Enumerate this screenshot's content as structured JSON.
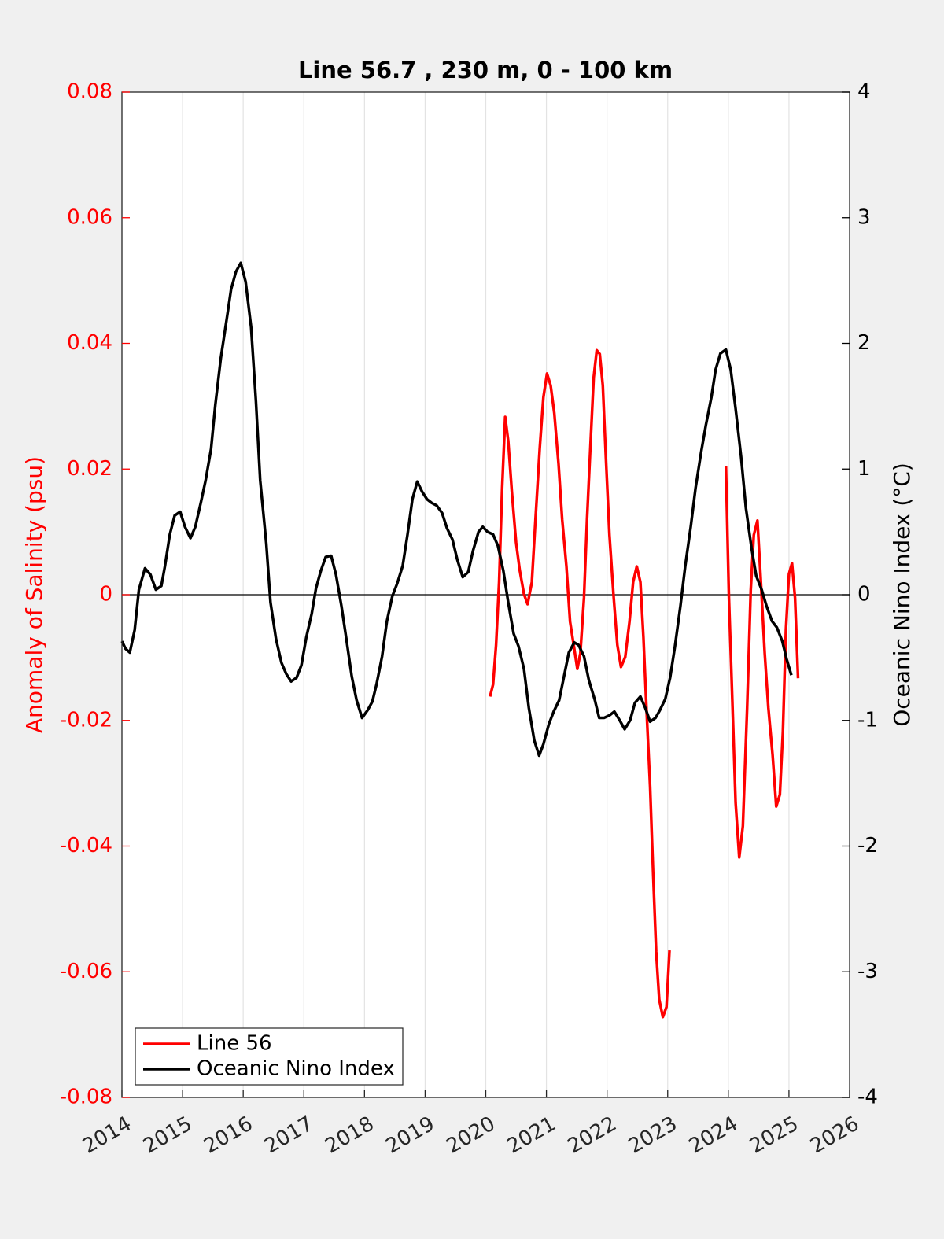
{
  "chart_data": {
    "type": "line",
    "title": "Line 56.7 , 230 m, 0 - 100 km",
    "ylabel": "Anomaly of Salinity (psu)",
    "y2label": "Oceanic Nino Index (°C)",
    "xlim": [
      2014,
      2026
    ],
    "xticks": [
      2014,
      2015,
      2016,
      2017,
      2018,
      2019,
      2020,
      2021,
      2022,
      2023,
      2024,
      2025,
      2026
    ],
    "ylim": [
      -0.08,
      0.08
    ],
    "yticks": [
      -0.08,
      -0.06,
      -0.04,
      -0.02,
      0,
      0.02,
      0.04,
      0.06,
      0.08
    ],
    "y2lim": [
      -4,
      4
    ],
    "y2ticks": [
      -4,
      -3,
      -2,
      -1,
      0,
      1,
      2,
      3,
      4
    ],
    "ycolor": "#ff0000",
    "y2color": "#000000",
    "xgrid": true,
    "hline": 0,
    "legend": "lower left",
    "series": [
      {
        "name": "Line 56",
        "color": "#ff0000",
        "x": [
          2020.07,
          2020.12,
          2020.17,
          2020.22,
          2020.27,
          2020.32,
          2020.37,
          2020.43,
          2020.5,
          2020.56,
          2020.63,
          2020.69,
          2020.76,
          2020.82,
          2020.89,
          2020.95,
          2021.01,
          2021.07,
          2021.13,
          2021.2,
          2021.26,
          2021.33,
          2021.39,
          2021.45,
          2021.51,
          2021.56,
          2021.62,
          2021.67,
          2021.73,
          2021.78,
          2021.83,
          2021.88,
          2021.93,
          2021.98,
          2022.04,
          2022.11,
          2022.17,
          2022.23,
          2022.3,
          2022.37,
          2022.43,
          2022.49,
          2022.55,
          2022.6,
          2022.65,
          2022.71,
          2022.76,
          2022.81,
          2022.86,
          2022.92,
          2022.98,
          2023.03,
          2023.5,
          2023.96,
          2024.01,
          2024.07,
          2024.12,
          2024.18,
          2024.24,
          2024.31,
          2024.37,
          2024.42,
          2024.48,
          2024.53,
          2024.6,
          2024.66,
          2024.73,
          2024.79,
          2024.85,
          2024.9,
          2024.95,
          2025,
          2025.05,
          2025.1,
          2025.15
        ],
        "values": [
          -0.0162,
          -0.0143,
          -0.008,
          0.002,
          0.017,
          0.0283,
          0.0245,
          0.0164,
          0.0083,
          0.0039,
          0.0001,
          -0.0015,
          0.002,
          0.012,
          0.0233,
          0.0314,
          0.0352,
          0.0333,
          0.0289,
          0.0208,
          0.012,
          0.0045,
          -0.0043,
          -0.008,
          -0.0118,
          -0.0093,
          -0.0005,
          0.012,
          0.0245,
          0.0346,
          0.0389,
          0.0383,
          0.0333,
          0.022,
          0.0095,
          -0.0005,
          -0.008,
          -0.0115,
          -0.0099,
          -0.0043,
          0.002,
          0.0045,
          0.002,
          -0.0068,
          -0.018,
          -0.0305,
          -0.0443,
          -0.0568,
          -0.0644,
          -0.0672,
          -0.0656,
          -0.0566,
          null,
          0.0205,
          -0.0005,
          -0.018,
          -0.0331,
          -0.0418,
          -0.0368,
          -0.018,
          0.0008,
          0.0095,
          0.0118,
          0.0033,
          -0.0093,
          -0.018,
          -0.0255,
          -0.0337,
          -0.0318,
          -0.0218,
          -0.0055,
          0.0033,
          0.005,
          -0.0005,
          -0.0133
        ]
      },
      {
        "name": "Oceanic Nino Index",
        "color": "#000000",
        "axis": "y2",
        "x": [
          2014,
          2014.06,
          2014.13,
          2014.21,
          2014.28,
          2014.38,
          2014.47,
          2014.56,
          2014.65,
          2014.71,
          2014.79,
          2014.87,
          2014.96,
          2015.04,
          2015.13,
          2015.21,
          2015.3,
          2015.38,
          2015.47,
          2015.54,
          2015.63,
          2015.73,
          2015.8,
          2015.88,
          2015.96,
          2016.04,
          2016.13,
          2016.21,
          2016.28,
          2016.38,
          2016.45,
          2016.54,
          2016.63,
          2016.71,
          2016.79,
          2016.88,
          2016.96,
          2017.04,
          2017.13,
          2017.2,
          2017.28,
          2017.36,
          2017.45,
          2017.53,
          2017.62,
          2017.7,
          2017.79,
          2017.87,
          2017.96,
          2018.05,
          2018.13,
          2018.2,
          2018.29,
          2018.37,
          2018.46,
          2018.54,
          2018.63,
          2018.71,
          2018.79,
          2018.87,
          2018.95,
          2019.03,
          2019.11,
          2019.19,
          2019.28,
          2019.36,
          2019.45,
          2019.53,
          2019.62,
          2019.71,
          2019.79,
          2019.88,
          2019.95,
          2020.03,
          2020.12,
          2020.2,
          2020.29,
          2020.37,
          2020.46,
          2020.54,
          2020.63,
          2020.71,
          2020.8,
          2020.88,
          2020.95,
          2021.04,
          2021.12,
          2021.21,
          2021.29,
          2021.37,
          2021.46,
          2021.53,
          2021.62,
          2021.7,
          2021.8,
          2021.87,
          2021.95,
          2022.04,
          2022.12,
          2022.21,
          2022.29,
          2022.38,
          2022.46,
          2022.55,
          2022.63,
          2022.71,
          2022.8,
          2022.87,
          2022.96,
          2023.04,
          2023.12,
          2023.21,
          2023.29,
          2023.38,
          2023.46,
          2023.55,
          2023.63,
          2023.72,
          2023.79,
          2023.87,
          2023.96,
          2024.04,
          2024.12,
          2024.21,
          2024.29,
          2024.38,
          2024.46,
          2024.55,
          2024.63,
          2024.72,
          2024.8,
          2024.89,
          2024.96,
          2025.04
        ],
        "values": [
          -0.37,
          -0.43,
          -0.46,
          -0.28,
          0.04,
          0.21,
          0.16,
          0.04,
          0.07,
          0.23,
          0.48,
          0.63,
          0.66,
          0.54,
          0.45,
          0.54,
          0.73,
          0.91,
          1.16,
          1.51,
          1.88,
          2.2,
          2.43,
          2.57,
          2.64,
          2.49,
          2.13,
          1.54,
          0.91,
          0.41,
          -0.06,
          -0.35,
          -0.54,
          -0.63,
          -0.69,
          -0.66,
          -0.56,
          -0.34,
          -0.15,
          0.05,
          0.19,
          0.3,
          0.31,
          0.16,
          -0.09,
          -0.35,
          -0.65,
          -0.84,
          -0.98,
          -0.92,
          -0.85,
          -0.71,
          -0.49,
          -0.21,
          -0.01,
          0.09,
          0.23,
          0.48,
          0.76,
          0.9,
          0.82,
          0.76,
          0.73,
          0.71,
          0.65,
          0.53,
          0.44,
          0.28,
          0.14,
          0.18,
          0.35,
          0.5,
          0.54,
          0.5,
          0.48,
          0.39,
          0.19,
          -0.06,
          -0.31,
          -0.41,
          -0.59,
          -0.9,
          -1.16,
          -1.28,
          -1.19,
          -1.03,
          -0.93,
          -0.84,
          -0.65,
          -0.46,
          -0.38,
          -0.4,
          -0.49,
          -0.68,
          -0.84,
          -0.98,
          -0.98,
          -0.96,
          -0.93,
          -1,
          -1.07,
          -1,
          -0.86,
          -0.81,
          -0.9,
          -1.01,
          -0.98,
          -0.92,
          -0.83,
          -0.66,
          -0.41,
          -0.09,
          0.23,
          0.54,
          0.85,
          1.13,
          1.35,
          1.57,
          1.79,
          1.92,
          1.95,
          1.79,
          1.48,
          1.1,
          0.69,
          0.38,
          0.15,
          0.04,
          -0.09,
          -0.21,
          -0.26,
          -0.37,
          -0.51,
          -0.64
        ]
      }
    ]
  }
}
